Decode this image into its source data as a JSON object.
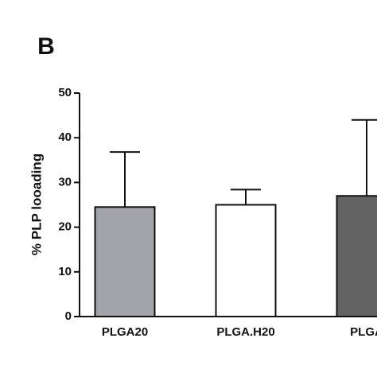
{
  "chart_data": {
    "type": "bar",
    "panel_label": "B",
    "ylabel": "% PLP looading",
    "categories": [
      "PLGA20",
      "PLGA.H20",
      "PLGA"
    ],
    "values": [
      24.5,
      25,
      27
    ],
    "errors": [
      12.3,
      3.4,
      17
    ],
    "colors": [
      "#a3a3aa",
      "#ffffff",
      "#636363"
    ],
    "ylim": [
      0,
      50
    ],
    "yticks": [
      0,
      10,
      20,
      30,
      40,
      50
    ],
    "grid": false
  }
}
